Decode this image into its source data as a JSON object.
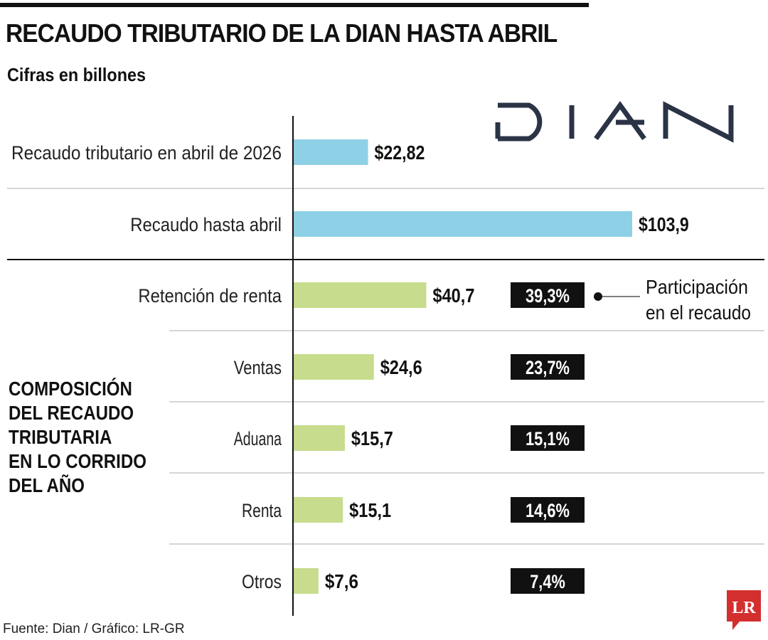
{
  "header": {
    "title": "RECAUDO TRIBUTARIO DE LA DIAN HASTA ABRIL",
    "subtitle": "Cifras en billones"
  },
  "logo": {
    "text": "DIAN",
    "color": "#2b3346"
  },
  "section_label": [
    "COMPOSICIÓN",
    "DEL RECAUDO",
    "TRIBUTARIA",
    "EN LO CORRIDO",
    "DEL AÑO"
  ],
  "legend_note": [
    "Participación",
    "en el recaudo"
  ],
  "footer": {
    "source": "Fuente: Dian / Gráfico: LR-GR",
    "badge": "LR"
  },
  "colors": {
    "blue": "#8ed0e5",
    "green": "#c7dc8c",
    "badge_bg": "#111111",
    "badge_text": "#ffffff",
    "lr_red": "#d32f2f"
  },
  "chart_data": {
    "type": "bar",
    "orientation": "horizontal",
    "unit": "billones",
    "categories": [
      "Recaudo tributario en abril de 2026",
      "Recaudo hasta abril",
      "Retención de renta",
      "Ventas",
      "Aduana",
      "Renta",
      "Otros"
    ],
    "values": [
      22.82,
      103.9,
      40.7,
      24.6,
      15.7,
      15.1,
      7.6
    ],
    "value_labels": [
      "$22,82",
      "$103,9",
      "$40,7",
      "$24,6",
      "$15,7",
      "$15,1",
      "$7,6"
    ],
    "share_labels": [
      "",
      "",
      "39,3%",
      "23,7%",
      "15,1%",
      "14,6%",
      "7,4%"
    ],
    "bar_colors": [
      "#8ed0e5",
      "#8ed0e5",
      "#c7dc8c",
      "#c7dc8c",
      "#c7dc8c",
      "#c7dc8c",
      "#c7dc8c"
    ]
  }
}
